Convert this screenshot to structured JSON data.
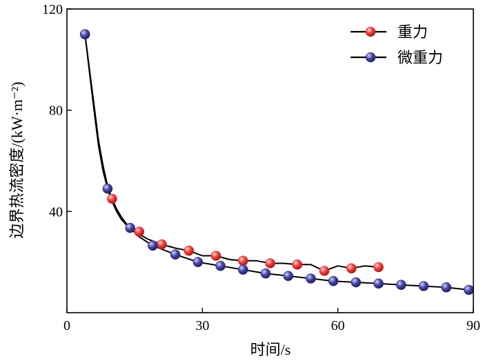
{
  "chart_data": {
    "type": "line",
    "title": "",
    "xlabel": "时间/s",
    "ylabel": "边界热流密度/(kW·m⁻²)",
    "xlim": [
      0,
      90
    ],
    "ylim": [
      0,
      120
    ],
    "xticks": [
      {
        "value": 0,
        "label": "0"
      },
      {
        "value": 30,
        "label": "30"
      },
      {
        "value": 60,
        "label": "60"
      },
      {
        "value": 90,
        "label": "90"
      }
    ],
    "yticks": [
      {
        "value": 40,
        "label": "40"
      },
      {
        "value": 80,
        "label": "80"
      },
      {
        "value": 120,
        "label": "120"
      }
    ],
    "legend_position": "top-right",
    "series": [
      {
        "name": "重力",
        "marker_color": "#e8262b",
        "line_color": "#000000",
        "x": [
          4,
          10,
          16,
          21,
          27,
          33,
          39,
          45,
          51,
          57,
          63,
          69
        ],
        "y": [
          110,
          45,
          32,
          27,
          24.5,
          22.5,
          20.5,
          19.5,
          19,
          16.5,
          17.5,
          18
        ],
        "line_x": [
          4,
          5,
          6,
          7,
          8,
          9,
          10,
          11,
          12,
          13,
          14,
          16,
          18,
          21,
          24,
          27,
          30,
          33,
          36,
          39,
          42,
          45,
          48,
          51,
          54,
          57,
          60,
          63,
          66,
          69
        ],
        "line_y": [
          110,
          96,
          82,
          68,
          58,
          50,
          45,
          41,
          38,
          35.5,
          33.5,
          31,
          29,
          27,
          25.5,
          24.5,
          22.5,
          22.5,
          21,
          20.5,
          20.5,
          19.5,
          19.5,
          19,
          19,
          16.5,
          18.5,
          17.5,
          18.5,
          18
        ]
      },
      {
        "name": "微重力",
        "marker_color": "#33338a",
        "line_color": "#000000",
        "x": [
          4,
          9,
          14,
          19,
          24,
          29,
          34,
          39,
          44,
          49,
          54,
          59,
          64,
          69,
          74,
          79,
          84,
          89
        ],
        "y": [
          110,
          49,
          33.5,
          26.5,
          23,
          20,
          18.5,
          17,
          15.5,
          14.5,
          13.5,
          12.5,
          12,
          11.5,
          11,
          10.5,
          10,
          9
        ],
        "line_x": [
          4,
          5,
          6,
          7,
          8,
          9,
          10,
          11,
          12,
          13,
          14,
          16,
          19,
          24,
          29,
          34,
          39,
          44,
          49,
          54,
          59,
          64,
          69,
          74,
          79,
          84,
          89
        ],
        "line_y": [
          110,
          95,
          80,
          66,
          56,
          49,
          44,
          40,
          37,
          35,
          33.5,
          30,
          26.5,
          23,
          20,
          18.5,
          17,
          15.5,
          14.5,
          13.5,
          12.5,
          12,
          11.5,
          11,
          10.5,
          10,
          9
        ]
      }
    ]
  }
}
